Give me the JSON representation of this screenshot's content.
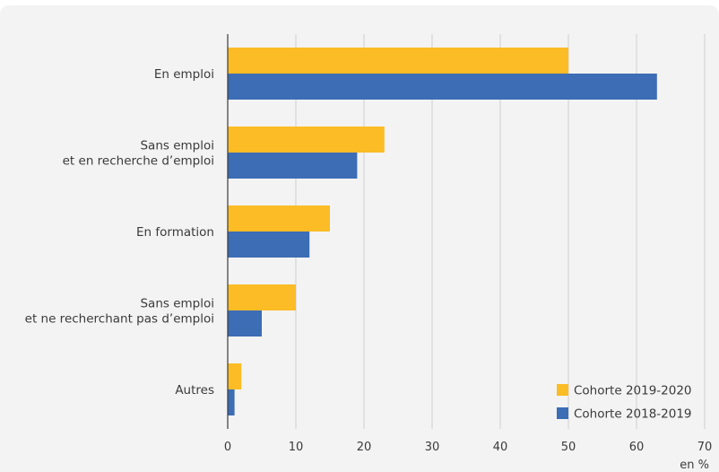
{
  "chart_data": {
    "type": "bar",
    "orientation": "horizontal",
    "categories": [
      [
        "En emploi"
      ],
      [
        "Sans emploi",
        "et en recherche d’emploi"
      ],
      [
        "En formation"
      ],
      [
        "Sans emploi",
        "et ne recherchant pas d’emploi"
      ],
      [
        "Autres"
      ]
    ],
    "series": [
      {
        "name": "Cohorte 2019-2020",
        "color": "#fbbc25",
        "values": [
          50,
          23,
          15,
          10,
          2
        ]
      },
      {
        "name": "Cohorte 2018-2019",
        "color": "#3c6db5",
        "values": [
          63,
          19,
          12,
          5,
          1
        ]
      }
    ],
    "xlim": [
      0,
      70
    ],
    "xticks": [
      "0",
      "10",
      "20",
      "30",
      "40",
      "50",
      "60",
      "70"
    ],
    "unit": "en %",
    "grid": "vertical",
    "legend": "bottom-right"
  }
}
